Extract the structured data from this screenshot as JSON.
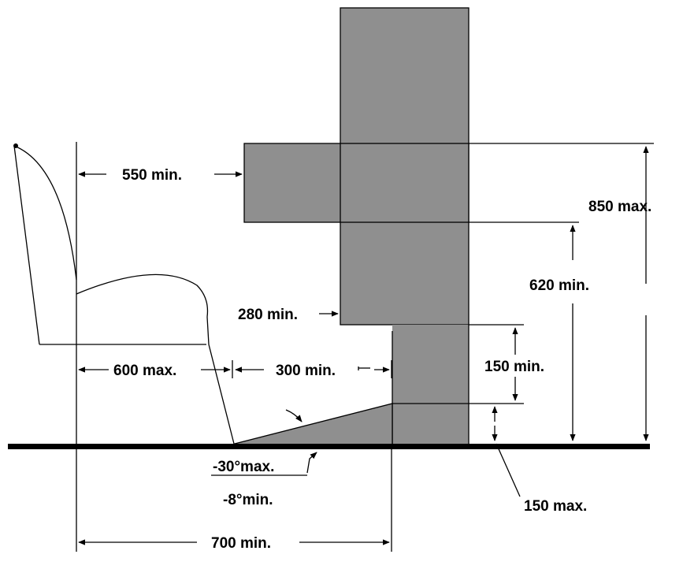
{
  "colors": {
    "structure": "#8f8f8f",
    "line": "#000000",
    "background": "#ffffff"
  },
  "labels": {
    "seat_to_edge": "550 min.",
    "total_height": "850 max.",
    "underside_height": "620 min.",
    "knee_clearance": "280 min.",
    "step_height": "150 min.",
    "seat_depth": "600 max.",
    "foot_space": "300 min.",
    "backrest_angle": "-30°max.",
    "footrest_angle": "-8°min.",
    "toe_height": "150 max.",
    "overall_depth": "700 min."
  }
}
